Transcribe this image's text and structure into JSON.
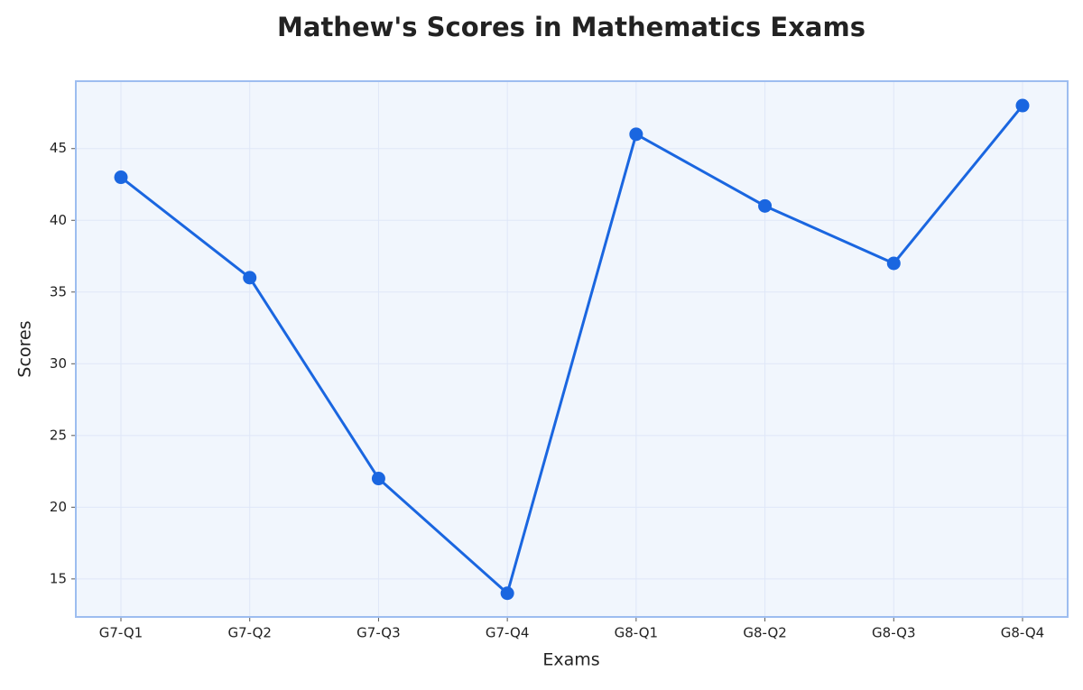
{
  "chart_data": {
    "type": "line",
    "title": "Mathew's Scores in Mathematics Exams",
    "xlabel": "Exams",
    "ylabel": "Scores",
    "categories": [
      "G7-Q1",
      "G7-Q2",
      "G7-Q3",
      "G7-Q4",
      "G8-Q1",
      "G8-Q2",
      "G8-Q3",
      "G8-Q4"
    ],
    "series": [
      {
        "name": "Scores",
        "color": "#1a66e0",
        "values": [
          43,
          36,
          22,
          14,
          46,
          41,
          37,
          48
        ]
      }
    ],
    "ylim": [
      12.35,
      49.7
    ],
    "yticks": [
      15,
      20,
      25,
      30,
      35,
      40,
      45
    ],
    "grid": true
  }
}
